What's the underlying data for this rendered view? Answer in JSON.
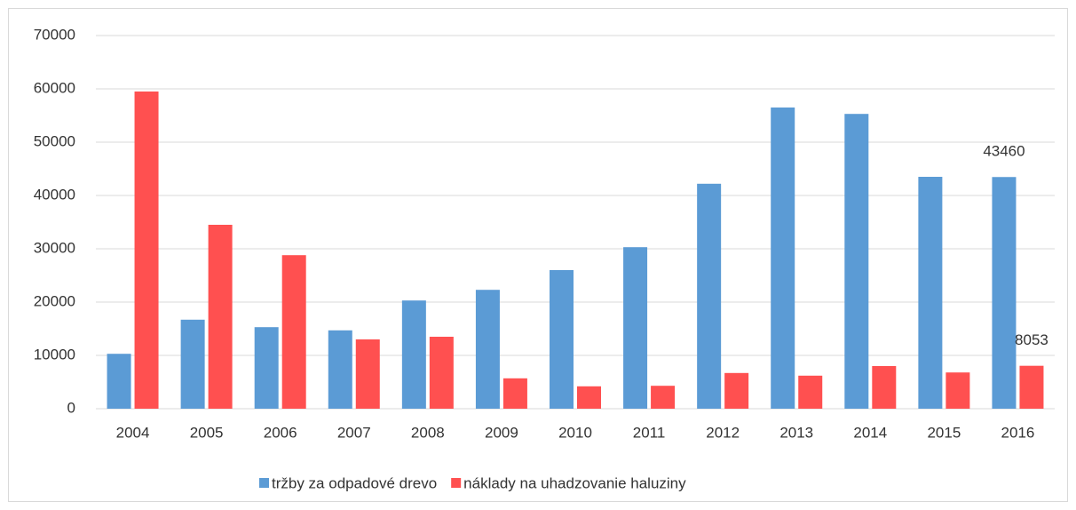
{
  "chart_data": {
    "type": "bar",
    "categories": [
      "2004",
      "2005",
      "2006",
      "2007",
      "2008",
      "2009",
      "2010",
      "2011",
      "2012",
      "2013",
      "2014",
      "2015",
      "2016"
    ],
    "series": [
      {
        "name": "tržby za odpadové drevo",
        "color": "#5b9bd5",
        "values": [
          10300,
          16700,
          15300,
          14700,
          20300,
          22300,
          26000,
          30300,
          42200,
          56500,
          55300,
          43500,
          43460
        ],
        "value_labels": [
          null,
          null,
          null,
          null,
          null,
          null,
          null,
          null,
          null,
          null,
          null,
          null,
          "43460"
        ]
      },
      {
        "name": "náklady na uhadzovanie haluziny",
        "color": "#ff5050",
        "values": [
          59500,
          34500,
          28800,
          13000,
          13500,
          5700,
          4200,
          4300,
          6700,
          6200,
          8000,
          6800,
          8053
        ],
        "value_labels": [
          null,
          null,
          null,
          null,
          null,
          null,
          null,
          null,
          null,
          null,
          null,
          null,
          "8053"
        ]
      }
    ],
    "ylim": [
      0,
      70000
    ],
    "yticks": [
      0,
      10000,
      20000,
      30000,
      40000,
      50000,
      60000,
      70000
    ],
    "grid": true,
    "legend": "bottom"
  }
}
